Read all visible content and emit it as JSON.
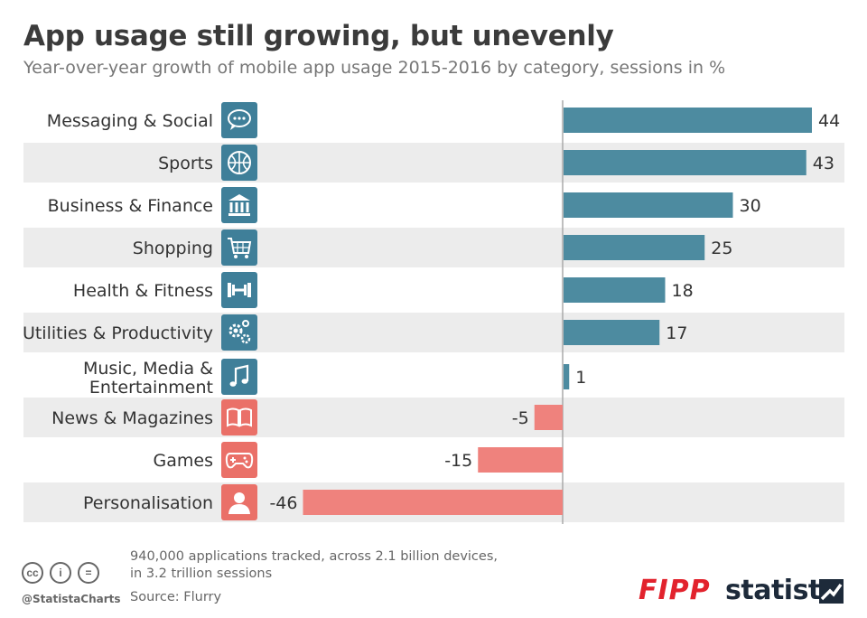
{
  "title": "App usage still growing, but unevenly",
  "subtitle": "Year-over-year growth of mobile app usage 2015-2016 by category, sessions in %",
  "colors": {
    "positive": "#4d8ba0",
    "negative": "#ef827d",
    "stripe": "#ececec",
    "icon_positive": "#3f7f99",
    "icon_negative": "#ea7068"
  },
  "chart_data": {
    "type": "bar",
    "orientation": "horizontal",
    "title": "App usage still growing, but unevenly",
    "subtitle": "Year-over-year growth of mobile app usage 2015-2016 by category, sessions in %",
    "categories": [
      "Messaging & Social",
      "Sports",
      "Business & Finance",
      "Shopping",
      "Health & Fitness",
      "Utilities & Productivity",
      "Music, Media & Entertainment",
      "News & Magazines",
      "Games",
      "Personalisation"
    ],
    "category_lines": [
      [
        "Messaging & Social"
      ],
      [
        "Sports"
      ],
      [
        "Business & Finance"
      ],
      [
        "Shopping"
      ],
      [
        "Health & Fitness"
      ],
      [
        "Utilities & Productivity"
      ],
      [
        "Music, Media &",
        "Entertainment"
      ],
      [
        "News & Magazines"
      ],
      [
        "Games"
      ],
      [
        "Personalisation"
      ]
    ],
    "icons": [
      "speech-bubble-icon",
      "basketball-icon",
      "bank-icon",
      "shopping-cart-icon",
      "dumbbell-icon",
      "gears-icon",
      "music-note-icon",
      "open-book-icon",
      "gamepad-icon",
      "person-icon"
    ],
    "values": [
      44,
      43,
      30,
      25,
      18,
      17,
      1,
      -5,
      -15,
      -46
    ],
    "xlim": [
      -46,
      44
    ],
    "unit": "%"
  },
  "footer": {
    "note_line1": "940,000 applications tracked, across 2.1 billion devices,",
    "note_line2": "in 3.2 trillion sessions",
    "source": "Source: Flurry",
    "handle": "@StatistaCharts",
    "cc_icons": [
      "cc",
      "i",
      "="
    ]
  },
  "logos": {
    "fipp": "FIPP",
    "statista": "statista"
  }
}
